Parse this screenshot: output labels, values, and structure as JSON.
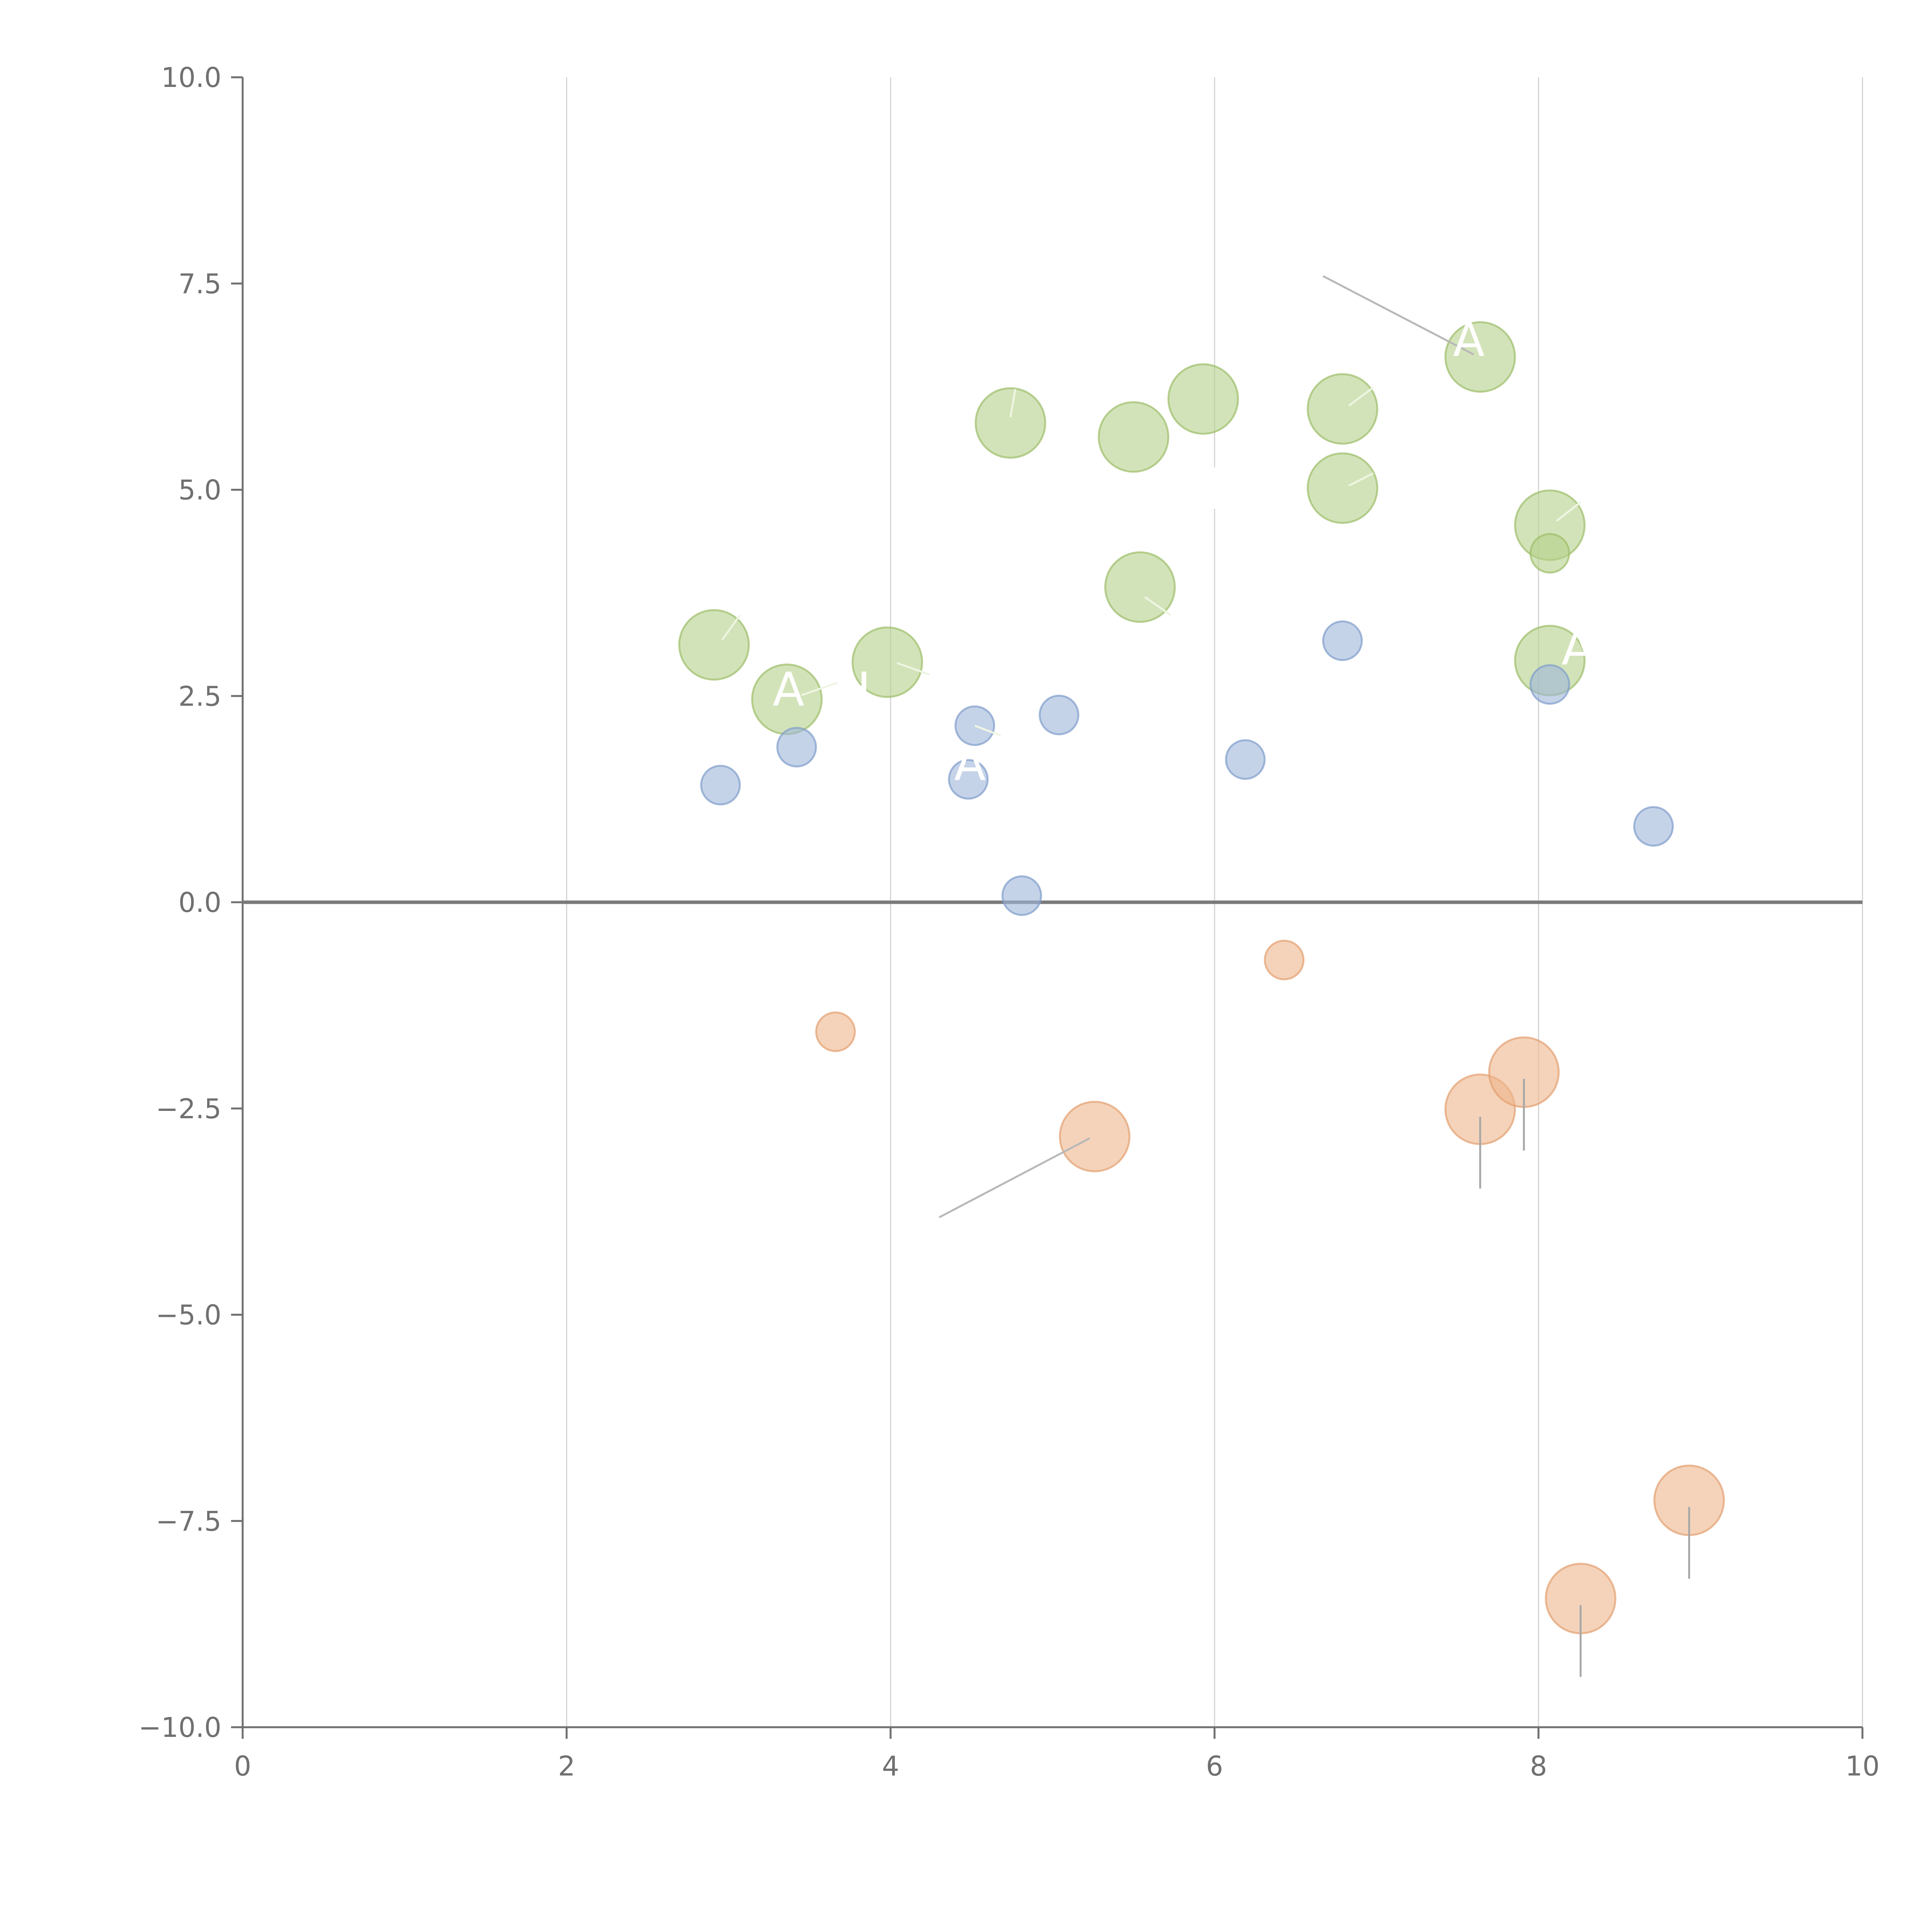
{
  "chart_data": {
    "type": "scatter",
    "title": "",
    "xlabel": "",
    "ylabel": "",
    "xlim": [
      0,
      10
    ],
    "ylim": [
      -10,
      10
    ],
    "x_ticks": [
      0,
      2,
      4,
      6,
      8,
      10
    ],
    "x_tick_labels": [
      "0",
      "2",
      "4",
      "6",
      "8",
      "10"
    ],
    "y_ticks": [
      10,
      7.5,
      5,
      2.5,
      0,
      -2.5,
      -5,
      -7.5,
      -10
    ],
    "y_tick_labels": [
      "10.0",
      "7.5",
      "5.0",
      "2.5",
      "0.0",
      "−2.5",
      "−5.0",
      "−7.5",
      "−10.0"
    ],
    "grid": "vertical",
    "zero_line": true,
    "legend": "none",
    "series": [
      {
        "name": "green",
        "color": "#b5d08a",
        "stroke": "#9cbd6a",
        "size": "large",
        "points": [
          {
            "x": 2.91,
            "y": 3.12
          },
          {
            "x": 3.36,
            "y": 2.46
          },
          {
            "x": 3.98,
            "y": 2.91
          },
          {
            "x": 4.74,
            "y": 5.81
          },
          {
            "x": 5.5,
            "y": 5.64
          },
          {
            "x": 5.54,
            "y": 3.82
          },
          {
            "x": 5.93,
            "y": 6.1
          },
          {
            "x": 6.79,
            "y": 5.98
          },
          {
            "x": 6.79,
            "y": 5.02
          },
          {
            "x": 7.64,
            "y": 6.61
          },
          {
            "x": 8.07,
            "y": 4.57
          },
          {
            "x": 8.07,
            "y": 2.93
          }
        ]
      },
      {
        "name": "green-small",
        "color": "#b5d08a",
        "stroke": "#9cbd6a",
        "size": "small",
        "points": [
          {
            "x": 8.07,
            "y": 4.23
          }
        ]
      },
      {
        "name": "blue",
        "color": "#9fb6db",
        "stroke": "#7f9dcb",
        "size": "small",
        "points": [
          {
            "x": 2.95,
            "y": 1.42
          },
          {
            "x": 3.42,
            "y": 1.88
          },
          {
            "x": 4.48,
            "y": 1.49
          },
          {
            "x": 4.52,
            "y": 2.14
          },
          {
            "x": 4.81,
            "y": 0.08
          },
          {
            "x": 5.04,
            "y": 2.27
          },
          {
            "x": 6.19,
            "y": 1.73
          },
          {
            "x": 6.79,
            "y": 3.17
          },
          {
            "x": 8.07,
            "y": 2.64
          },
          {
            "x": 8.71,
            "y": 0.92
          }
        ]
      },
      {
        "name": "orange",
        "color": "#eeb68c",
        "stroke": "#e3a070",
        "size": "mixed",
        "points": [
          {
            "x": 3.66,
            "y": -1.57,
            "size": "small"
          },
          {
            "x": 5.26,
            "y": -2.84,
            "size": "large"
          },
          {
            "x": 6.43,
            "y": -0.7,
            "size": "small"
          },
          {
            "x": 7.64,
            "y": -2.51,
            "size": "large"
          },
          {
            "x": 7.91,
            "y": -2.06,
            "size": "large"
          },
          {
            "x": 8.26,
            "y": -8.44,
            "size": "large"
          },
          {
            "x": 8.93,
            "y": -7.25,
            "size": "large"
          }
        ]
      }
    ],
    "annotations": [
      {
        "text": "A",
        "x": 7.57,
        "y": 6.82
      },
      {
        "text": "A",
        "x": 3.37,
        "y": 2.58
      },
      {
        "text": "H",
        "x": 3.77,
        "y": 2.58
      },
      {
        "text": "A",
        "x": 4.49,
        "y": 1.68
      },
      {
        "text": "A",
        "x": 8.24,
        "y": 3.08
      }
    ],
    "leader_lines": [
      {
        "x1": 6.67,
        "y1": 7.59,
        "x2": 7.6,
        "y2": 6.64,
        "color": "#b8b8b8"
      },
      {
        "x1": 4.3,
        "y1": -3.82,
        "x2": 5.23,
        "y2": -2.86,
        "color": "#b8b8b8"
      },
      {
        "x1": 7.64,
        "y1": -2.6,
        "x2": 7.64,
        "y2": -3.47,
        "color": "#a8a8a8"
      },
      {
        "x1": 7.91,
        "y1": -2.14,
        "x2": 7.91,
        "y2": -3.01,
        "color": "#a8a8a8"
      },
      {
        "x1": 8.26,
        "y1": -8.52,
        "x2": 8.26,
        "y2": -9.39,
        "color": "#a8a8a8"
      },
      {
        "x1": 8.93,
        "y1": -7.33,
        "x2": 8.93,
        "y2": -8.2,
        "color": "#a8a8a8"
      },
      {
        "x1": 2.96,
        "y1": 3.18,
        "x2": 3.07,
        "y2": 3.48,
        "color": "#eef5e2"
      },
      {
        "x1": 4.74,
        "y1": 5.88,
        "x2": 4.77,
        "y2": 6.22,
        "color": "#eef5e2"
      },
      {
        "x1": 6.83,
        "y1": 6.02,
        "x2": 6.98,
        "y2": 6.24,
        "color": "#eef5e2"
      },
      {
        "x1": 6.83,
        "y1": 5.05,
        "x2": 6.98,
        "y2": 5.2,
        "color": "#eef5e2"
      },
      {
        "x1": 8.11,
        "y1": 4.62,
        "x2": 8.26,
        "y2": 4.85,
        "color": "#eef5e2"
      },
      {
        "x1": 5.57,
        "y1": 3.7,
        "x2": 5.73,
        "y2": 3.48,
        "color": "#eef5e2"
      },
      {
        "x1": 3.45,
        "y1": 2.51,
        "x2": 3.67,
        "y2": 2.66,
        "color": "#eef5e2"
      },
      {
        "x1": 4.04,
        "y1": 2.9,
        "x2": 4.24,
        "y2": 2.76,
        "color": "#eef5e2"
      },
      {
        "x1": 4.52,
        "y1": 2.14,
        "x2": 4.68,
        "y2": 2.02,
        "color": "#eef5e2"
      },
      {
        "x1": 6.0,
        "y1": 4.77,
        "x2": 6.0,
        "y2": 5.27,
        "color": "#ffffff"
      }
    ]
  }
}
